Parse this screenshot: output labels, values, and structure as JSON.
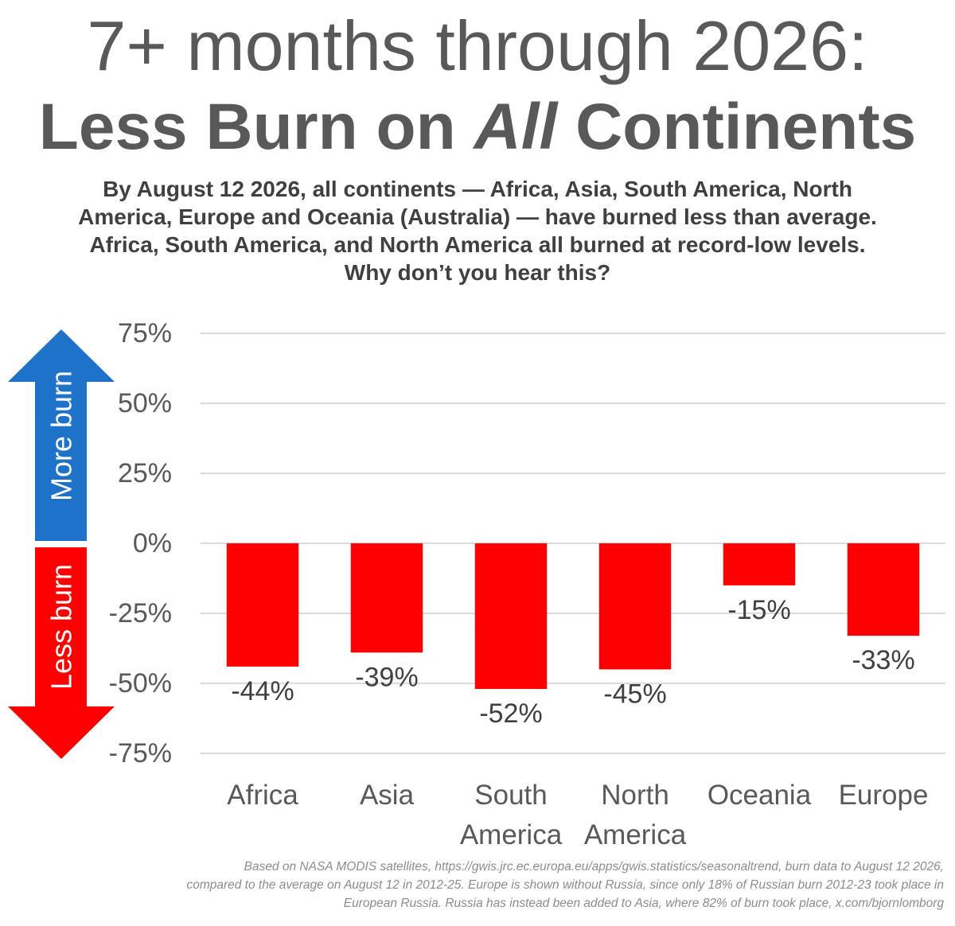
{
  "title": {
    "line1": "7+ months through 2026:",
    "line2_before": "Less Burn on ",
    "line2_italic": "All",
    "line2_after": " Continents"
  },
  "subtitle_lines": [
    "By August 12 2026, all continents — Africa, Asia, South America, North",
    "America, Europe and Oceania (Australia) — have burned less than average.",
    "Africa, South America, and North America all burned at record-low levels.",
    "Why don’t you hear this?"
  ],
  "arrows": {
    "up_label": "More burn",
    "down_label": "Less burn",
    "up_color": "#1e73c8",
    "down_color": "#ff0000"
  },
  "chart_data": {
    "type": "bar",
    "categories": [
      [
        "Africa"
      ],
      [
        "Asia"
      ],
      [
        "South",
        "America"
      ],
      [
        "North",
        "America"
      ],
      [
        "Oceania"
      ],
      [
        "Europe"
      ]
    ],
    "values": [
      -44,
      -39,
      -52,
      -45,
      -15,
      -33
    ],
    "data_labels": [
      "-44%",
      "-39%",
      "-52%",
      "-45%",
      "-15%",
      "-33%"
    ],
    "ylim": [
      -75,
      75
    ],
    "yticks": [
      75,
      50,
      25,
      0,
      -25,
      -50,
      -75
    ],
    "ytick_labels": [
      "75%",
      "50%",
      "25%",
      "0%",
      "-25%",
      "-50%",
      "-75%"
    ],
    "grid": true,
    "bar_color": "#ff0000",
    "xlabel": "",
    "ylabel": ""
  },
  "footnote_lines": [
    "Based on NASA MODIS satellites, https://gwis.jrc.ec.europa.eu/apps/gwis.statistics/seasonaltrend, burn data to August 12 2026,",
    "compared to the average on August 12 in 2012-25. Europe is shown without Russia, since only 18% of Russian burn 2012-23 took place in",
    "European Russia. Russia has instead been added to Asia, where 82% of burn took place, x.com/bjornlomborg"
  ]
}
